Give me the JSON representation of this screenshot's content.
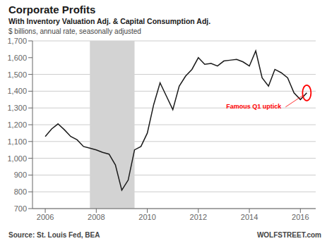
{
  "chart_data": {
    "type": "line",
    "title": "Corporate Profits",
    "subtitle": "With Inventory Valuation Adj. & Capital Consumption Adj.",
    "y_label": "$ billions, annual rate, seasonally adjusted",
    "sources": [
      "Source: St. Louis Fed, BEA",
      "WOLFSTREET.com"
    ],
    "x": [
      2006.0,
      2006.25,
      2006.5,
      2006.75,
      2007.0,
      2007.25,
      2007.5,
      2007.75,
      2008.0,
      2008.25,
      2008.5,
      2008.75,
      2009.0,
      2009.25,
      2009.5,
      2009.75,
      2010.0,
      2010.25,
      2010.5,
      2010.75,
      2011.0,
      2011.25,
      2011.5,
      2011.75,
      2012.0,
      2012.25,
      2012.5,
      2012.75,
      2013.0,
      2013.25,
      2013.5,
      2013.75,
      2014.0,
      2014.25,
      2014.5,
      2014.75,
      2015.0,
      2015.25,
      2015.5,
      2015.75,
      2016.0,
      2016.25
    ],
    "values": [
      1130,
      1175,
      1205,
      1170,
      1130,
      1110,
      1070,
      1060,
      1050,
      1035,
      1025,
      960,
      810,
      870,
      1050,
      1070,
      1150,
      1320,
      1450,
      1370,
      1290,
      1430,
      1490,
      1530,
      1600,
      1560,
      1565,
      1550,
      1580,
      1585,
      1590,
      1575,
      1550,
      1640,
      1480,
      1430,
      1530,
      1510,
      1480,
      1390,
      1350,
      1390
    ],
    "color": "#1a1a1a",
    "xlim": [
      2005.5,
      2016.6
    ],
    "xticks": [
      2006,
      2008,
      2010,
      2012,
      2014,
      2016
    ],
    "ylim": [
      700,
      1700
    ],
    "yticks": [
      700,
      800,
      900,
      {
        "value": 1000,
        "label": "1,000"
      },
      {
        "value": 1100,
        "label": "1,100"
      },
      {
        "value": 1200,
        "label": "1,200"
      },
      {
        "value": 1300,
        "label": "1,300"
      },
      {
        "value": 1400,
        "label": "1,400"
      },
      {
        "value": 1500,
        "label": "1,500"
      },
      {
        "value": 1600,
        "label": "1,600"
      },
      {
        "value": 1700,
        "label": "1,700"
      }
    ],
    "grid": true,
    "recession": {
      "start": 2007.75,
      "end": 2009.5,
      "color": "#d3d3d3"
    },
    "annotations": [
      {
        "text": "Famous Q1 uptick",
        "x": 2016.25,
        "y": 1390,
        "color": "#ff0000"
      }
    ]
  }
}
